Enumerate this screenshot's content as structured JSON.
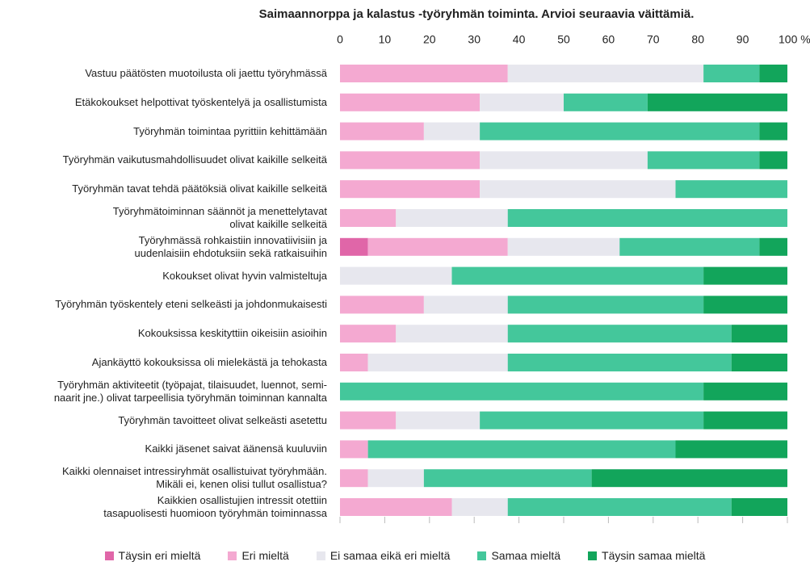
{
  "chart_data": {
    "type": "stacked_bar_horizontal",
    "title": "Saimaannorppa ja kalastus -työryhmän toiminta. Arvioi seuraavia väittämiä.",
    "categories": [
      "Vastuu päätösten muotoilusta oli jaettu työryhmässä",
      "Etäkokoukset helpottivat työskentelyä ja osallistumista",
      "Työryhmän toimintaa pyrittiin kehittämään",
      "Työryhmän vaikutusmahdollisuudet olivat kaikille selkeitä",
      "Työryhmän tavat tehdä päätöksiä olivat kaikille selkeitä",
      "Työryhmätoiminnan säännöt ja menettelytavat\nolivat kaikille selkeitä",
      "Työryhmässä rohkaistiin innovatiivisiin ja\nuudenlaisiin ehdotuksiin sekä ratkaisuihin",
      "Kokoukset olivat hyvin valmisteltuja",
      "Työryhmän työskentely eteni selkeästi ja johdonmukaisesti",
      "Kokouksissa keskityttiin oikeisiin asioihin",
      "Ajankäyttö kokouksissa oli mielekästä ja tehokasta",
      "Työryhmän aktiviteetit (työpajat, tilaisuudet, luennot, semi-\nnaarit jne.) olivat tarpeellisia työryhmän toiminnan kannalta",
      "Työryhmän tavoitteet olivat selkeästi asetettu",
      "Kaikki jäsenet saivat äänensä kuuluviin",
      "Kaikki olennaiset intressiryhmät osallistuivat työryhmään.\nMikäli ei, kenen olisi tullut osallistua?",
      "Kaikkien osallistujien intressit otettiin\ntasapuolisesti huomioon työryhmän toiminnassa"
    ],
    "series": [
      {
        "name": "Täysin eri mieltä",
        "color": "#e066a8",
        "values": [
          0,
          0,
          0,
          0,
          0,
          0,
          6.25,
          0,
          0,
          0,
          0,
          0,
          0,
          0,
          0,
          0
        ]
      },
      {
        "name": "Eri mieltä",
        "color": "#f4a9d1",
        "values": [
          37.5,
          31.25,
          18.75,
          31.25,
          31.25,
          12.5,
          31.25,
          0,
          18.75,
          12.5,
          6.25,
          0,
          12.5,
          6.25,
          6.25,
          25
        ]
      },
      {
        "name": "Ei samaa eikä eri mieltä",
        "color": "#e7e7ee",
        "values": [
          43.75,
          18.75,
          12.5,
          37.5,
          43.75,
          25,
          25,
          25,
          18.75,
          25,
          31.25,
          0,
          18.75,
          0,
          12.5,
          12.5
        ]
      },
      {
        "name": "Samaa mieltä",
        "color": "#44c79b",
        "values": [
          12.5,
          18.75,
          62.5,
          25,
          25,
          62.5,
          31.25,
          56.25,
          43.75,
          50,
          50,
          81.25,
          50,
          68.75,
          37.5,
          50
        ]
      },
      {
        "name": "Täysin samaa mieltä",
        "color": "#12a55b",
        "values": [
          6.25,
          31.25,
          6.25,
          6.25,
          0,
          0,
          6.25,
          18.75,
          18.75,
          12.5,
          12.5,
          18.75,
          18.75,
          25,
          43.75,
          12.5
        ]
      }
    ],
    "xlim": [
      0,
      100
    ],
    "xticks": [
      0,
      10,
      20,
      30,
      40,
      50,
      60,
      70,
      80,
      90,
      {
        "value": 100,
        "label": "100 %"
      }
    ],
    "legend": "bottom"
  }
}
